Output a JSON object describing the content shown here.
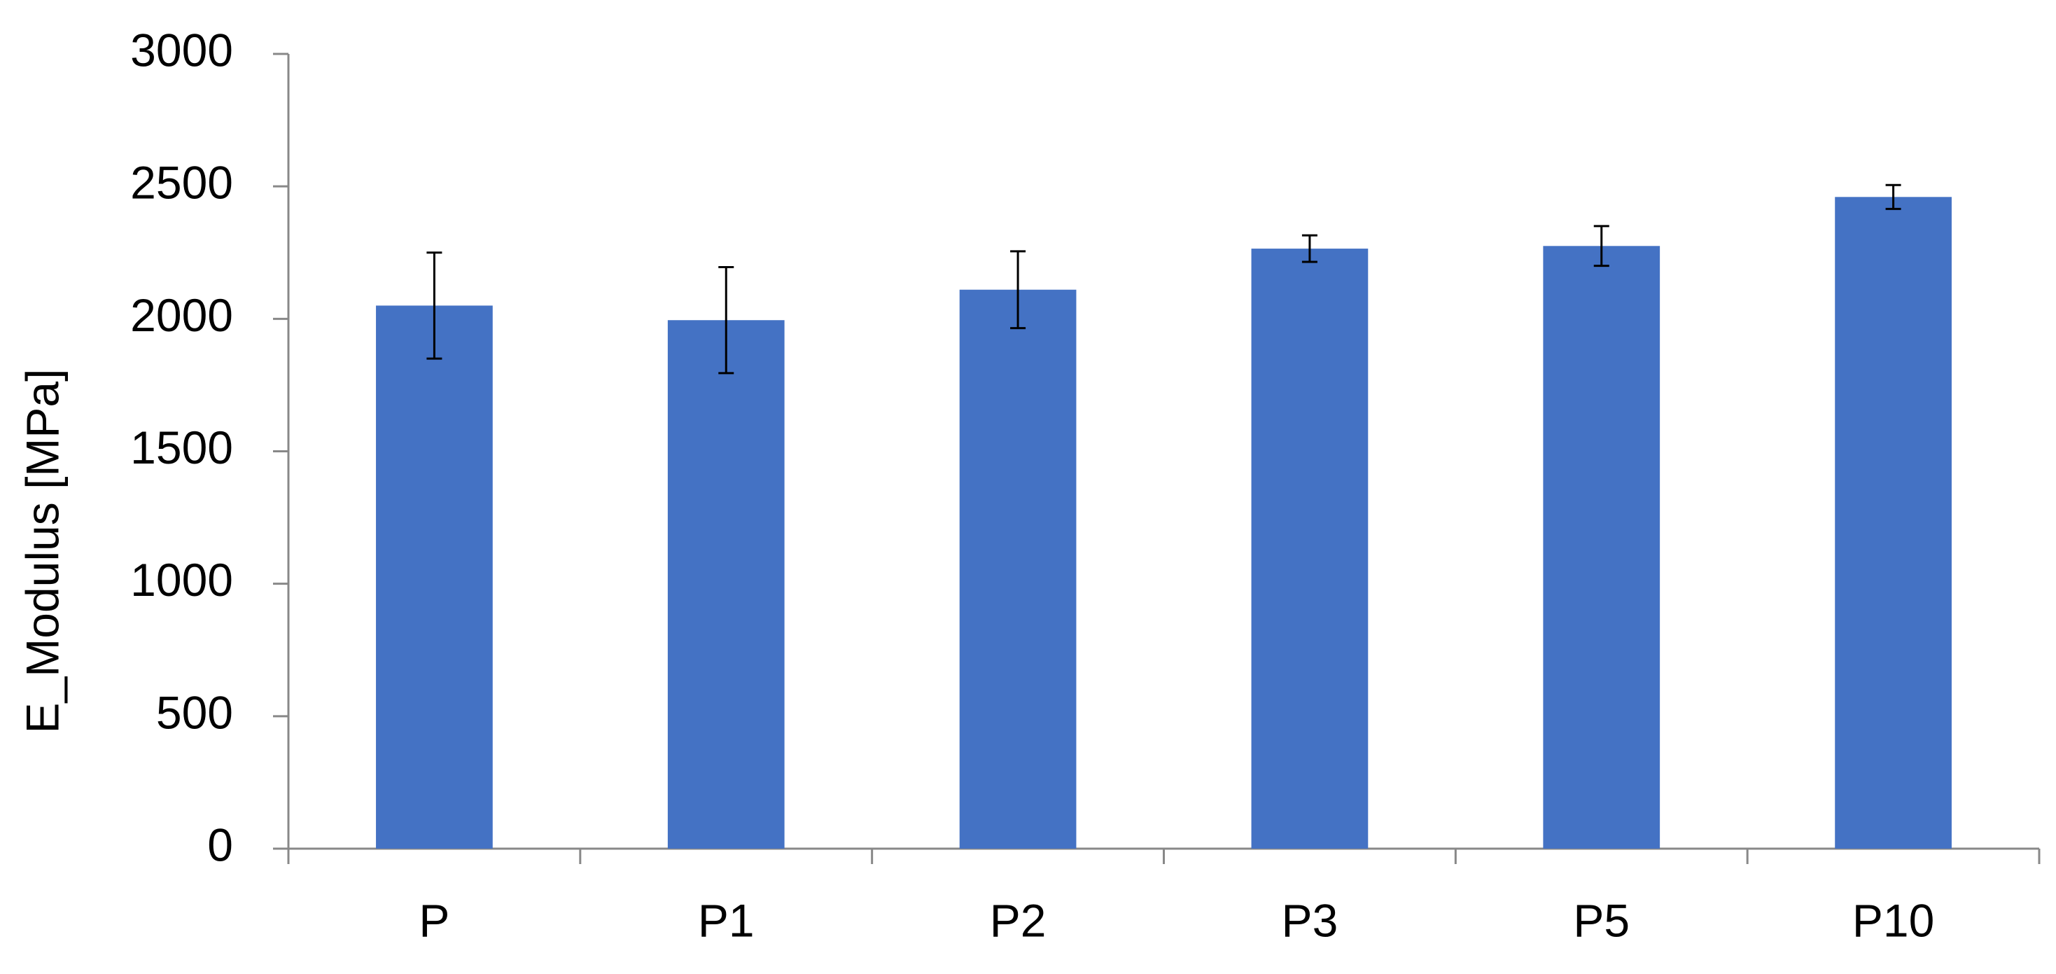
{
  "chart_data": {
    "type": "bar",
    "y_label": "E_Modulus [MPa]",
    "categories": [
      "P",
      "P1",
      "P2",
      "P3",
      "P5",
      "P10"
    ],
    "values": [
      2050,
      1995,
      2110,
      2265,
      2275,
      2460
    ],
    "errors": [
      200,
      200,
      145,
      50,
      75,
      45
    ],
    "color": "#4472c4",
    "ylim": [
      0,
      3000
    ],
    "yticks": [
      0,
      500,
      1000,
      1500,
      2000,
      2500,
      3000
    ],
    "grid": false
  }
}
